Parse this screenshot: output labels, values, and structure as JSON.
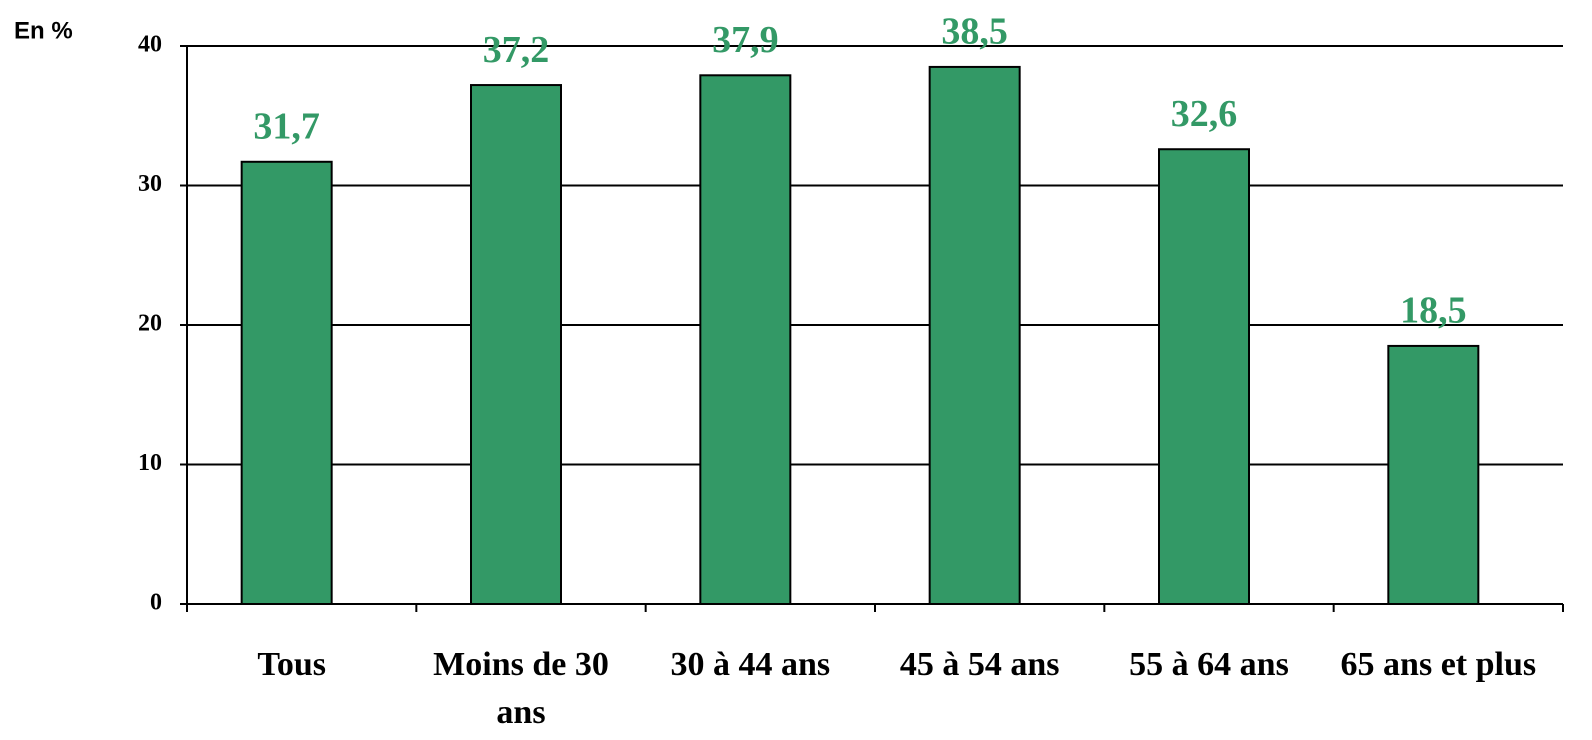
{
  "chart_data": {
    "type": "bar",
    "ylabel": "En %",
    "categories": [
      "Tous",
      "Moins de 30 ans",
      "30 à 44 ans",
      "45 à 54 ans",
      "55 à 64 ans",
      "65 ans et plus"
    ],
    "values": [
      31.7,
      37.2,
      37.9,
      38.5,
      32.6,
      18.5
    ],
    "value_labels": [
      "31,7",
      "37,2",
      "37,9",
      "38,5",
      "32,6",
      "18,5"
    ],
    "color": "#339966",
    "label_color": "#339966",
    "ylim": [
      0,
      40
    ],
    "yticks": [
      0,
      10,
      20,
      30,
      40
    ],
    "grid": true
  }
}
